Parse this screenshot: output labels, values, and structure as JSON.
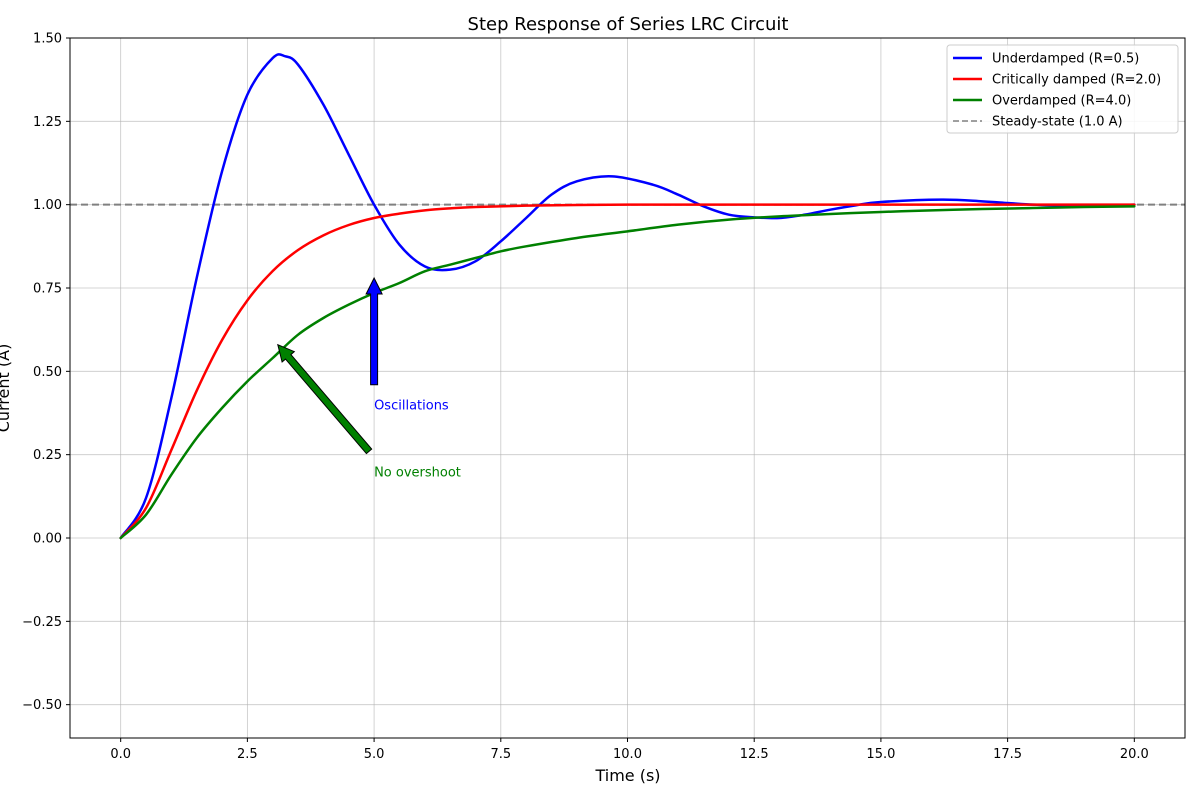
{
  "chart_data": {
    "type": "line",
    "title": "Step Response of Series LRC Circuit",
    "xlabel": "Time (s)",
    "ylabel": "Current (A)",
    "xlim": [
      -1.0,
      21.0
    ],
    "ylim": [
      -0.6,
      1.5
    ],
    "xticks": [
      0.0,
      2.5,
      5.0,
      7.5,
      10.0,
      12.5,
      15.0,
      17.5,
      20.0
    ],
    "xtick_labels": [
      "0.0",
      "2.5",
      "5.0",
      "7.5",
      "10.0",
      "12.5",
      "15.0",
      "17.5",
      "20.0"
    ],
    "yticks": [
      -0.5,
      -0.25,
      0.0,
      0.25,
      0.5,
      0.75,
      1.0,
      1.25,
      1.5
    ],
    "ytick_labels": [
      "−0.50",
      "−0.25",
      "0.00",
      "0.25",
      "0.50",
      "0.75",
      "1.00",
      "1.25",
      "1.50"
    ],
    "grid": true,
    "legend_position": "top-right",
    "series": [
      {
        "name": "Underdamped (R=0.5)",
        "color": "#0000ff",
        "x": [
          0,
          0.5,
          1.0,
          1.5,
          2.0,
          2.5,
          3.0,
          3.25,
          3.5,
          4.0,
          4.5,
          5.0,
          5.5,
          6.0,
          6.5,
          7.0,
          7.5,
          8.0,
          8.5,
          9.0,
          9.7,
          10.5,
          11.0,
          11.5,
          12.0,
          12.5,
          13.0,
          13.5,
          14.0,
          14.5,
          15.0,
          16.2,
          17.0,
          17.5,
          18.0,
          18.5,
          19.0,
          19.5,
          20.0
        ],
        "y": [
          0.0,
          0.12,
          0.42,
          0.78,
          1.1,
          1.33,
          1.44,
          1.445,
          1.42,
          1.3,
          1.15,
          1.0,
          0.88,
          0.815,
          0.805,
          0.83,
          0.89,
          0.96,
          1.03,
          1.07,
          1.085,
          1.06,
          1.03,
          0.995,
          0.97,
          0.962,
          0.96,
          0.97,
          0.985,
          0.998,
          1.008,
          1.015,
          1.01,
          1.005,
          1.0,
          0.998,
          0.997,
          0.998,
          1.0
        ]
      },
      {
        "name": "Critically damped (R=2.0)",
        "color": "#ff0000",
        "x": [
          0,
          0.5,
          1.0,
          1.5,
          2.0,
          2.5,
          3.0,
          3.5,
          4.0,
          4.5,
          5.0,
          5.5,
          6.0,
          6.5,
          7.0,
          8.0,
          9.0,
          10.0,
          12.0,
          14.0,
          16.0,
          18.0,
          20.0
        ],
        "y": [
          0.0,
          0.09,
          0.264,
          0.442,
          0.594,
          0.713,
          0.801,
          0.864,
          0.908,
          0.939,
          0.96,
          0.973,
          0.983,
          0.989,
          0.993,
          0.997,
          0.999,
          1.0,
          1.0,
          1.0,
          1.0,
          1.0,
          1.0
        ]
      },
      {
        "name": "Overdamped (R=4.0)",
        "color": "#008000",
        "x": [
          0,
          0.5,
          1.0,
          1.5,
          2.0,
          2.5,
          3.0,
          3.5,
          4.0,
          4.5,
          5.0,
          5.5,
          6.0,
          6.5,
          7.0,
          7.5,
          8.0,
          9.0,
          10.0,
          11.0,
          12.0,
          13.0,
          14.0,
          15.0,
          16.0,
          17.0,
          18.0,
          19.0,
          20.0
        ],
        "y": [
          0.0,
          0.07,
          0.19,
          0.3,
          0.39,
          0.47,
          0.54,
          0.61,
          0.66,
          0.7,
          0.735,
          0.765,
          0.8,
          0.82,
          0.84,
          0.86,
          0.875,
          0.9,
          0.92,
          0.94,
          0.955,
          0.965,
          0.972,
          0.978,
          0.983,
          0.987,
          0.99,
          0.993,
          0.995
        ]
      }
    ],
    "reference_line": {
      "name": "Steady-state (1.0 A)",
      "y": 1.0,
      "color": "#808080",
      "style": "dashed"
    },
    "annotations": [
      {
        "text": "Oscillations",
        "color": "#0000ff",
        "text_at": [
          5.0,
          0.4
        ],
        "arrow_from": [
          5.0,
          0.46
        ],
        "arrow_to": [
          5.0,
          0.78
        ]
      },
      {
        "text": "No overshoot",
        "color": "#008000",
        "text_at": [
          5.0,
          0.2
        ],
        "arrow_from": [
          4.9,
          0.26
        ],
        "arrow_to": [
          3.1,
          0.58
        ]
      }
    ]
  }
}
